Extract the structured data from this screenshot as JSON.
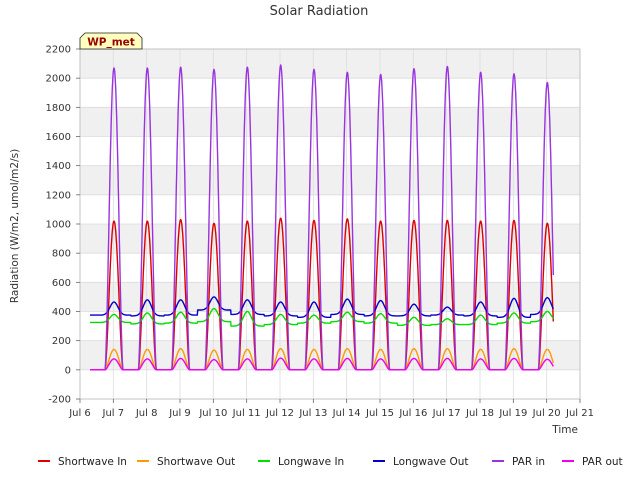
{
  "chart_data": {
    "type": "line",
    "title": "Solar Radiation",
    "xlabel": "Time",
    "ylabel": "Radiation (W/m2, umol/m2/s)",
    "annotation": "WP_met",
    "x_range_days": [
      6,
      21
    ],
    "x_tick_days": [
      6,
      7,
      8,
      9,
      10,
      11,
      12,
      13,
      14,
      15,
      16,
      17,
      18,
      19,
      20,
      21
    ],
    "x_tick_labels": [
      "Jul 6",
      "Jul 7",
      "Jul 8",
      "Jul 9",
      "Jul 10",
      "Jul 11",
      "Jul 12",
      "Jul 13",
      "Jul 14",
      "Jul 15",
      "Jul 16",
      "Jul 17",
      "Jul 18",
      "Jul 19",
      "Jul 20",
      "Jul 21"
    ],
    "ylim": [
      -200,
      2200
    ],
    "y_ticks": [
      -200,
      0,
      200,
      400,
      600,
      800,
      1000,
      1200,
      1400,
      1600,
      1800,
      2000,
      2200
    ],
    "grid": true,
    "background_bands": "alternating light gray",
    "legend_position": "bottom",
    "data_x_range_days": [
      6.3,
      20.2
    ],
    "daily_peaks": {
      "days": [
        7,
        8,
        9,
        10,
        11,
        12,
        13,
        14,
        15,
        16,
        17,
        18,
        19,
        20
      ],
      "series": [
        {
          "name": "Shortwave In",
          "color": "#dd0000",
          "peak": [
            1020,
            1020,
            1030,
            1005,
            1020,
            1040,
            1025,
            1035,
            1020,
            1025,
            1025,
            1020,
            1025,
            1005
          ],
          "night": 0
        },
        {
          "name": "Shortwave Out",
          "color": "#ff9900",
          "peak": [
            140,
            140,
            145,
            135,
            140,
            145,
            140,
            145,
            140,
            145,
            145,
            140,
            145,
            140
          ],
          "night": 0
        },
        {
          "name": "Longwave In",
          "color": "#00dd00",
          "peak": [
            380,
            390,
            395,
            420,
            400,
            380,
            375,
            395,
            385,
            360,
            350,
            375,
            390,
            400
          ],
          "night": [
            325,
            315,
            320,
            330,
            300,
            310,
            320,
            330,
            320,
            305,
            310,
            310,
            320,
            330
          ]
        },
        {
          "name": "Longwave Out",
          "color": "#0000cc",
          "peak": [
            465,
            480,
            480,
            500,
            480,
            465,
            465,
            485,
            475,
            450,
            430,
            465,
            490,
            495
          ],
          "night": [
            375,
            370,
            375,
            410,
            380,
            370,
            360,
            380,
            370,
            370,
            375,
            370,
            360,
            380
          ]
        },
        {
          "name": "PAR in",
          "color": "#9933dd",
          "peak": [
            2070,
            2070,
            2075,
            2060,
            2075,
            2090,
            2060,
            2040,
            2025,
            2065,
            2080,
            2040,
            2030,
            1970
          ],
          "night": 0
        },
        {
          "name": "PAR out",
          "color": "#ee00ee",
          "peak": [
            75,
            75,
            78,
            70,
            75,
            80,
            75,
            78,
            75,
            78,
            78,
            75,
            78,
            72
          ],
          "night": 0
        }
      ]
    }
  }
}
